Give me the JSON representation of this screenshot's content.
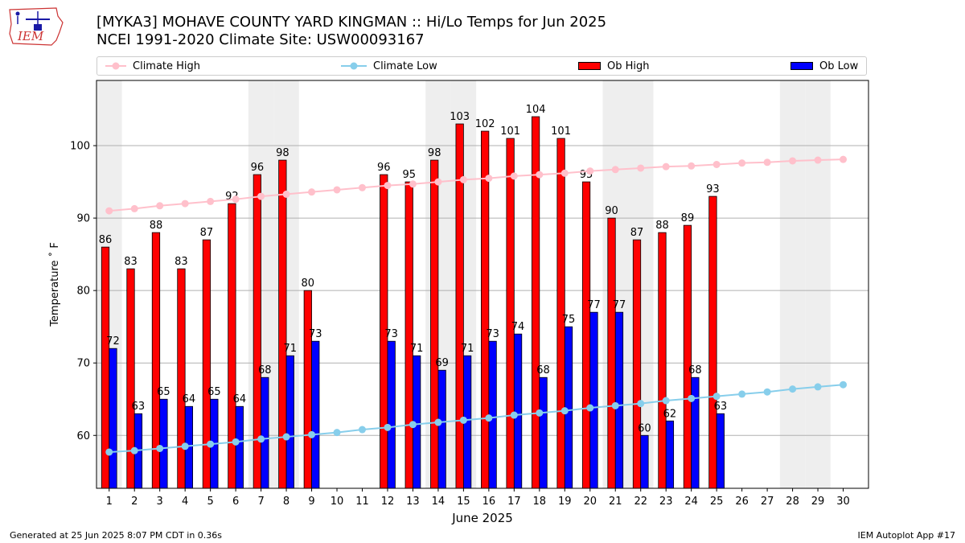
{
  "header": {
    "title_line1": "[MYKA3] MOHAVE COUNTY YARD  KINGMAN :: Hi/Lo Temps for Jun 2025",
    "title_line2": "NCEI 1991-2020 Climate Site: USW00093167",
    "logo_text": "IEM"
  },
  "legend": {
    "climate_high": "Climate High",
    "climate_low": "Climate Low",
    "ob_high": "Ob High",
    "ob_low": "Ob Low"
  },
  "footer": {
    "generated": "Generated at 25 Jun 2025 8:07 PM CDT in 0.36s",
    "app": "IEM Autoplot App #17"
  },
  "colors": {
    "climate_high": "#ffc0cb",
    "climate_low": "#87ceeb",
    "ob_high": "#ff0000",
    "ob_low": "#0000ff",
    "weekend_shade": "#eeeeee",
    "grid": "#b0b0b0"
  },
  "chart_data": {
    "type": "bar",
    "xlabel": "June 2025",
    "ylabel": "Temperature ˚ F",
    "ylim": [
      52.7,
      109
    ],
    "yticks": [
      60,
      70,
      80,
      90,
      100
    ],
    "grid": "horizontal",
    "legend_position": "top",
    "categories": [
      "1",
      "2",
      "3",
      "4",
      "5",
      "6",
      "7",
      "8",
      "9",
      "10",
      "11",
      "12",
      "13",
      "14",
      "15",
      "16",
      "17",
      "18",
      "19",
      "20",
      "21",
      "22",
      "23",
      "24",
      "25",
      "26",
      "27",
      "28",
      "29",
      "30"
    ],
    "shaded_days": [
      1,
      7,
      8,
      14,
      15,
      21,
      22,
      28,
      29
    ],
    "series": [
      {
        "name": "Ob High",
        "kind": "bar",
        "values": [
          86,
          83,
          88,
          83,
          87,
          92,
          96,
          98,
          80,
          null,
          null,
          96,
          95,
          98,
          103,
          102,
          101,
          104,
          101,
          95,
          90,
          87,
          88,
          89,
          93,
          null,
          null,
          null,
          null,
          null
        ]
      },
      {
        "name": "Ob Low",
        "kind": "bar",
        "values": [
          72,
          63,
          65,
          64,
          65,
          64,
          68,
          71,
          73,
          null,
          null,
          73,
          71,
          69,
          71,
          73,
          74,
          68,
          75,
          77,
          77,
          60,
          62,
          68,
          63,
          null,
          null,
          null,
          null,
          null
        ]
      },
      {
        "name": "Climate High",
        "kind": "line",
        "values": [
          91.0,
          91.3,
          91.7,
          92.0,
          92.3,
          92.6,
          93.0,
          93.3,
          93.6,
          93.9,
          94.2,
          94.5,
          94.7,
          95.0,
          95.3,
          95.5,
          95.8,
          96.0,
          96.2,
          96.5,
          96.7,
          96.9,
          97.1,
          97.2,
          97.4,
          97.6,
          97.7,
          97.9,
          98.0,
          98.1
        ]
      },
      {
        "name": "Climate Low",
        "kind": "line",
        "values": [
          57.7,
          57.9,
          58.2,
          58.5,
          58.8,
          59.1,
          59.5,
          59.8,
          60.1,
          60.4,
          60.8,
          61.1,
          61.5,
          61.8,
          62.1,
          62.4,
          62.8,
          63.1,
          63.4,
          63.8,
          64.1,
          64.4,
          64.8,
          65.1,
          65.4,
          65.7,
          66.0,
          66.4,
          66.7,
          67.0
        ]
      }
    ]
  }
}
